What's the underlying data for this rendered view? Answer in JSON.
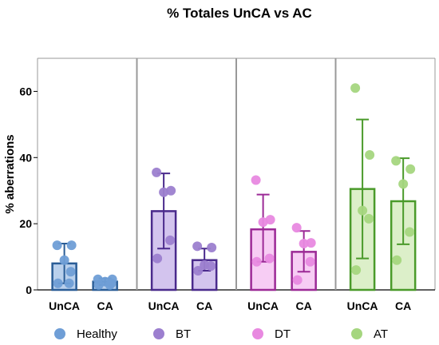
{
  "chart_data": {
    "type": "bar",
    "title": "% Totales UnCA vs AC",
    "ylabel": "% aberrations",
    "xlabel": "",
    "ylim": [
      0,
      70
    ],
    "yticks": [
      0,
      20,
      40,
      60
    ],
    "grid": false,
    "legend_position": "bottom",
    "groups": [
      {
        "name": "Healthy",
        "color_fill": "#b9d0ec",
        "color_edge": "#2a5d96",
        "color_point": "#6f9ed6",
        "bars": [
          {
            "category": "UnCA",
            "value": 8,
            "error": [
              2,
              14
            ],
            "points": [
              13.5,
              13.5,
              9,
              5.5,
              2,
              2
            ]
          },
          {
            "category": "CA",
            "value": 2.5,
            "error": [
              1.5,
              3.5
            ],
            "points": [
              3.2,
              3.2,
              2.5,
              2,
              1.5,
              1.5
            ]
          }
        ]
      },
      {
        "name": "BT",
        "color_fill": "#d3c4ee",
        "color_edge": "#4a2a8c",
        "color_point": "#9c7fcf",
        "bars": [
          {
            "category": "UnCA",
            "value": 23.8,
            "error": [
              12.5,
              35.2
            ],
            "points": [
              35.5,
              30,
              29.5,
              15,
              9.5
            ]
          },
          {
            "category": "CA",
            "value": 9,
            "error": [
              5.8,
              12.5
            ],
            "points": [
              13.2,
              12.8,
              7.5,
              7.2,
              5.8
            ]
          }
        ]
      },
      {
        "name": "DT",
        "color_fill": "#f7cdf4",
        "color_edge": "#9c2a96",
        "color_point": "#e889e0",
        "bars": [
          {
            "category": "UnCA",
            "value": 18.3,
            "error": [
              8.5,
              28.8
            ],
            "points": [
              33.2,
              21.2,
              20.5,
              9.5,
              8.5
            ]
          },
          {
            "category": "CA",
            "value": 11.5,
            "error": [
              5.5,
              17.8
            ],
            "points": [
              18.8,
              14.2,
              14,
              8.5,
              3
            ]
          }
        ]
      },
      {
        "name": "AT",
        "color_fill": "#dcefc9",
        "color_edge": "#4a9a2a",
        "color_point": "#a5d67f",
        "bars": [
          {
            "category": "UnCA",
            "value": 30.5,
            "error": [
              9.5,
              51.5
            ],
            "points": [
              61,
              40.8,
              24,
              21.5,
              6
            ]
          },
          {
            "category": "CA",
            "value": 26.8,
            "error": [
              13.8,
              39.8
            ],
            "points": [
              39,
              36.5,
              32,
              17.5,
              9
            ]
          }
        ]
      }
    ]
  }
}
